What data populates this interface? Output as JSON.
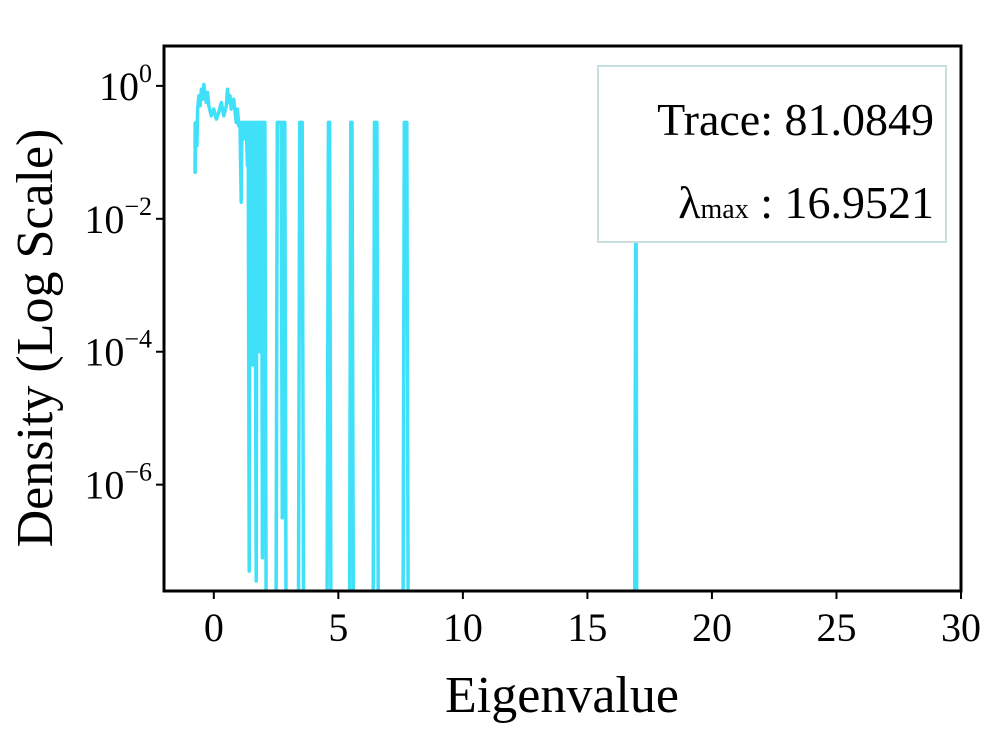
{
  "chart_data": {
    "type": "line",
    "xlabel": "Eigenvalue",
    "ylabel": "Density (Log Scale)",
    "xlim": [
      -2.0,
      30
    ],
    "ylim_log10": [
      -7.6,
      0.6
    ],
    "log_y": true,
    "grid": false,
    "x_ticks": [
      0,
      5,
      10,
      15,
      20,
      25,
      30
    ],
    "y_ticks": [
      {
        "base": "10",
        "exp": "0",
        "log10": 0
      },
      {
        "base": "10",
        "exp": "−2",
        "log10": -2
      },
      {
        "base": "10",
        "exp": "−4",
        "log10": -4
      },
      {
        "base": "10",
        "exp": "−6",
        "log10": -6
      }
    ],
    "annotation": {
      "placement": "top-right",
      "trace_label": "Trace",
      "trace_value": "81.0849",
      "lambda_symbol": "λ",
      "lambda_sub": "max",
      "lambda_value": "16.9521"
    },
    "line_color": "#3fe0f8",
    "series": [
      {
        "points": [
          [
            -0.75,
            -0.55
          ],
          [
            -0.75,
            -1.3
          ],
          [
            -0.72,
            -0.55
          ],
          [
            -0.68,
            -0.9
          ],
          [
            -0.65,
            -0.35
          ],
          [
            -0.6,
            -0.15
          ],
          [
            -0.55,
            -0.3
          ],
          [
            -0.5,
            -0.05
          ],
          [
            -0.45,
            -0.2
          ],
          [
            -0.4,
            0.02
          ],
          [
            -0.35,
            -0.12
          ],
          [
            -0.3,
            -0.25
          ],
          [
            -0.25,
            -0.1
          ],
          [
            -0.2,
            -0.3
          ],
          [
            -0.1,
            -0.45
          ],
          [
            0.0,
            -0.35
          ],
          [
            0.1,
            -0.5
          ],
          [
            0.2,
            -0.4
          ],
          [
            0.3,
            -0.25
          ],
          [
            0.4,
            -0.45
          ],
          [
            0.5,
            -0.3
          ],
          [
            0.55,
            -0.05
          ],
          [
            0.6,
            -0.25
          ],
          [
            0.65,
            -0.15
          ],
          [
            0.7,
            -0.35
          ],
          [
            0.8,
            -0.2
          ],
          [
            0.9,
            -0.55
          ],
          [
            0.95,
            -0.35
          ],
          [
            1.0,
            -0.6
          ],
          [
            1.05,
            -0.55
          ],
          [
            1.1,
            -1.75
          ],
          [
            1.13,
            -0.55
          ],
          [
            1.2,
            -0.55
          ],
          [
            1.25,
            -0.8
          ],
          [
            1.3,
            -0.55
          ],
          [
            1.35,
            -1.2
          ],
          [
            1.38,
            -0.55
          ],
          [
            1.42,
            -7.3
          ],
          [
            1.45,
            -0.55
          ],
          [
            1.5,
            -0.55
          ],
          [
            1.55,
            -4.2
          ],
          [
            1.58,
            -0.55
          ],
          [
            1.65,
            -0.55
          ],
          [
            1.7,
            -7.45
          ],
          [
            1.73,
            -0.55
          ],
          [
            1.78,
            -0.55
          ],
          [
            1.82,
            -4.0
          ],
          [
            1.85,
            -0.55
          ],
          [
            1.92,
            -0.55
          ],
          [
            1.95,
            -7.1
          ],
          [
            1.98,
            -0.55
          ],
          [
            2.05,
            -0.55
          ],
          [
            2.1,
            -7.7
          ],
          [
            2.5,
            -7.7
          ],
          [
            2.55,
            -0.55
          ],
          [
            2.7,
            -0.55
          ],
          [
            2.75,
            -6.5
          ],
          [
            2.78,
            -0.55
          ],
          [
            2.85,
            -0.55
          ],
          [
            2.9,
            -7.7
          ],
          [
            3.4,
            -7.7
          ],
          [
            3.45,
            -0.55
          ],
          [
            3.55,
            -0.55
          ],
          [
            3.6,
            -7.7
          ],
          [
            4.55,
            -7.7
          ],
          [
            4.6,
            -0.55
          ],
          [
            4.65,
            -0.55
          ],
          [
            4.7,
            -7.7
          ],
          [
            5.45,
            -7.7
          ],
          [
            5.5,
            -0.55
          ],
          [
            5.55,
            -0.55
          ],
          [
            5.6,
            -7.7
          ],
          [
            6.4,
            -7.7
          ],
          [
            6.45,
            -0.55
          ],
          [
            6.55,
            -0.55
          ],
          [
            6.6,
            -7.7
          ],
          [
            7.6,
            -7.7
          ],
          [
            7.65,
            -0.55
          ],
          [
            7.75,
            -0.55
          ],
          [
            7.8,
            -7.7
          ],
          [
            16.9,
            -7.7
          ],
          [
            16.95,
            -0.55
          ],
          [
            16.98,
            -7.7
          ]
        ]
      }
    ]
  }
}
